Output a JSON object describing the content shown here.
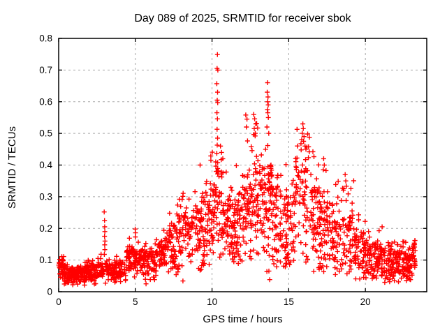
{
  "title": "Day 089 of 2025, SRMTID for receiver sbok",
  "axes": {
    "xlabel": "GPS time / hours",
    "ylabel": "SRMTID / TECUs"
  },
  "colors": {
    "marker": "#ff0000",
    "grid": "#a8a8a8",
    "frame": "#000000",
    "background": "#ffffff",
    "text": "#000000"
  },
  "chart_data": {
    "type": "scatter",
    "title": "Day 089 of 2025, SRMTID for receiver sbok",
    "xlabel": "GPS time / hours",
    "ylabel": "SRMTID / TECUs",
    "xlim": [
      0,
      24
    ],
    "ylim": [
      0,
      0.8
    ],
    "xticks": {
      "values": [
        0,
        5,
        10,
        15,
        20
      ],
      "labels": [
        "0",
        "5",
        "10",
        "15",
        "20"
      ]
    },
    "yticks": {
      "values": [
        0,
        0.1,
        0.2,
        0.3,
        0.4,
        0.5,
        0.6,
        0.7,
        0.8
      ],
      "labels": [
        "0",
        "0.1",
        "0.2",
        "0.3",
        "0.4",
        "0.5",
        "0.6",
        "0.7",
        "0.8"
      ]
    },
    "grid": "dashed",
    "legend": "none",
    "marker": "plus",
    "marker_size_px": 7,
    "seed": 20250891,
    "cluster_bins": [
      [
        0.0,
        0.35,
        35,
        0.05,
        0.1,
        0.115
      ],
      [
        0.35,
        1.0,
        70,
        0.03,
        0.075,
        0.095
      ],
      [
        1.0,
        1.7,
        75,
        0.03,
        0.07,
        0.09
      ],
      [
        1.7,
        2.5,
        80,
        0.035,
        0.08,
        0.1
      ],
      [
        2.5,
        2.95,
        40,
        0.05,
        0.09,
        0.13
      ],
      [
        3.05,
        3.6,
        45,
        0.04,
        0.085,
        0.105
      ],
      [
        3.6,
        4.4,
        70,
        0.04,
        0.09,
        0.125
      ],
      [
        4.4,
        4.95,
        50,
        0.07,
        0.13,
        0.185
      ],
      [
        4.95,
        5.6,
        55,
        0.075,
        0.13,
        0.165
      ],
      [
        5.2,
        6.4,
        12,
        0.035,
        0.065,
        0.08
      ],
      [
        5.6,
        6.4,
        60,
        0.065,
        0.125,
        0.165
      ],
      [
        6.4,
        7.0,
        50,
        0.08,
        0.15,
        0.2
      ],
      [
        7.0,
        7.7,
        55,
        0.095,
        0.21,
        0.33
      ],
      [
        7.3,
        8.4,
        10,
        0.045,
        0.095,
        0.11
      ],
      [
        7.7,
        8.5,
        60,
        0.11,
        0.24,
        0.32
      ],
      [
        8.5,
        9.3,
        60,
        0.11,
        0.255,
        0.345
      ],
      [
        9.0,
        9.8,
        8,
        0.06,
        0.11,
        0.13
      ],
      [
        9.3,
        9.9,
        50,
        0.12,
        0.285,
        0.36
      ],
      [
        9.9,
        10.2,
        30,
        0.13,
        0.32,
        0.45
      ],
      [
        10.2,
        10.7,
        45,
        0.15,
        0.38,
        0.44
      ],
      [
        10.7,
        11.3,
        55,
        0.14,
        0.3,
        0.43
      ],
      [
        10.8,
        12.0,
        8,
        0.085,
        0.13,
        0.14
      ],
      [
        11.3,
        11.9,
        55,
        0.14,
        0.29,
        0.4
      ],
      [
        11.9,
        12.6,
        65,
        0.15,
        0.33,
        0.48
      ],
      [
        12.6,
        13.35,
        70,
        0.17,
        0.39,
        0.56
      ],
      [
        13.35,
        13.95,
        60,
        0.17,
        0.4,
        0.52
      ],
      [
        13.3,
        15.3,
        10,
        0.05,
        0.11,
        0.13
      ],
      [
        13.95,
        14.7,
        60,
        0.12,
        0.33,
        0.44
      ],
      [
        14.7,
        15.45,
        60,
        0.11,
        0.3,
        0.43
      ],
      [
        15.45,
        16.35,
        70,
        0.14,
        0.4,
        0.53
      ],
      [
        16.35,
        17.05,
        60,
        0.12,
        0.32,
        0.47
      ],
      [
        16.5,
        18.2,
        10,
        0.05,
        0.1,
        0.12
      ],
      [
        17.05,
        17.65,
        50,
        0.11,
        0.28,
        0.42
      ],
      [
        17.65,
        18.45,
        60,
        0.095,
        0.25,
        0.35
      ],
      [
        18.45,
        19.25,
        60,
        0.08,
        0.235,
        0.37
      ],
      [
        19.25,
        20.0,
        60,
        0.06,
        0.18,
        0.25
      ],
      [
        20.0,
        20.85,
        70,
        0.05,
        0.155,
        0.21
      ],
      [
        20.85,
        21.65,
        70,
        0.045,
        0.14,
        0.195
      ],
      [
        21.65,
        22.45,
        70,
        0.04,
        0.125,
        0.17
      ],
      [
        22.45,
        23.0,
        60,
        0.05,
        0.12,
        0.16
      ],
      [
        23.0,
        23.25,
        30,
        0.075,
        0.15,
        0.17
      ]
    ],
    "peak_points": [
      [
        2.97,
        0.252
      ],
      [
        2.99,
        0.225
      ],
      [
        3.0,
        0.205
      ],
      [
        3.01,
        0.19
      ],
      [
        2.99,
        0.175
      ],
      [
        3.02,
        0.16
      ],
      [
        3.0,
        0.148
      ],
      [
        3.01,
        0.133
      ],
      [
        2.98,
        0.118
      ],
      [
        4.99,
        0.198
      ],
      [
        5.01,
        0.186
      ],
      [
        5.0,
        0.173
      ],
      [
        9.22,
        0.4
      ],
      [
        10.35,
        0.749
      ],
      [
        10.33,
        0.705
      ],
      [
        10.38,
        0.7
      ],
      [
        10.31,
        0.657
      ],
      [
        10.36,
        0.63
      ],
      [
        10.34,
        0.605
      ],
      [
        10.37,
        0.597
      ],
      [
        10.32,
        0.565
      ],
      [
        10.35,
        0.546
      ],
      [
        10.33,
        0.513
      ],
      [
        10.36,
        0.485
      ],
      [
        10.34,
        0.463
      ],
      [
        10.31,
        0.437
      ],
      [
        10.37,
        0.408
      ],
      [
        10.55,
        0.46
      ],
      [
        10.62,
        0.44
      ],
      [
        10.7,
        0.42
      ],
      [
        12.2,
        0.558
      ],
      [
        12.28,
        0.545
      ],
      [
        12.24,
        0.52
      ],
      [
        12.72,
        0.56
      ],
      [
        12.78,
        0.546
      ],
      [
        12.85,
        0.53
      ],
      [
        12.75,
        0.515
      ],
      [
        12.82,
        0.5
      ],
      [
        13.62,
        0.66
      ],
      [
        13.6,
        0.63
      ],
      [
        13.65,
        0.615
      ],
      [
        13.63,
        0.6
      ],
      [
        13.66,
        0.59
      ],
      [
        13.61,
        0.575
      ],
      [
        13.64,
        0.565
      ],
      [
        13.67,
        0.55
      ],
      [
        13.58,
        0.52
      ],
      [
        13.7,
        0.5
      ],
      [
        15.85,
        0.48
      ],
      [
        15.92,
        0.53
      ],
      [
        15.95,
        0.515
      ],
      [
        15.88,
        0.5
      ],
      [
        16.0,
        0.49
      ],
      [
        15.97,
        0.475
      ],
      [
        16.06,
        0.46
      ],
      [
        16.12,
        0.45
      ],
      [
        17.28,
        0.42
      ],
      [
        17.32,
        0.4
      ],
      [
        17.25,
        0.385
      ],
      [
        18.68,
        0.37
      ],
      [
        18.72,
        0.35
      ],
      [
        21.09,
        0.205
      ]
    ]
  }
}
